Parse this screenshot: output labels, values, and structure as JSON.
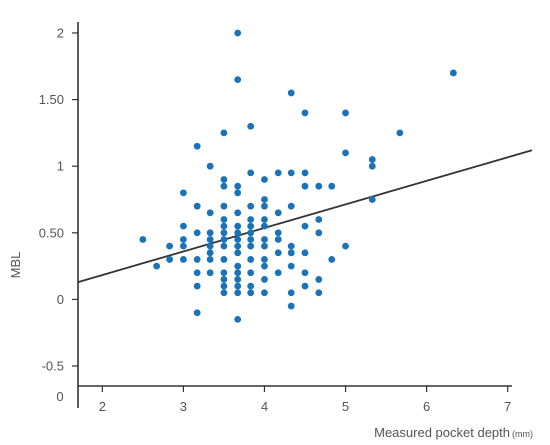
{
  "chart_data": {
    "type": "scatter",
    "xlabel": "Measured pocket depth",
    "xlabel_unit": "(mm)",
    "ylabel": "MBL",
    "xlim": [
      1.7,
      7.3
    ],
    "ylim": [
      -0.65,
      2.15
    ],
    "x_ticks": [
      2,
      3,
      4,
      5,
      6,
      7
    ],
    "x_tick_labels": [
      "2",
      "3",
      "4",
      "5",
      "6",
      "7"
    ],
    "y_ticks": [
      -0.5,
      0,
      0.5,
      1,
      1.5,
      2
    ],
    "y_tick_labels": [
      "-0.5",
      "0",
      "0.50",
      "1",
      "1.50",
      "2"
    ],
    "origin_label": "0",
    "grid": false,
    "colors": {
      "points": "#1a73b8",
      "trend_line": "#333333",
      "axis": "#333333"
    },
    "trend_line": {
      "x": [
        1.7,
        7.3
      ],
      "y": [
        0.13,
        1.12
      ]
    },
    "series": [
      {
        "points": [
          [
            2.5,
            0.45
          ],
          [
            2.67,
            0.25
          ],
          [
            2.83,
            0.3
          ],
          [
            2.83,
            0.4
          ],
          [
            3.0,
            0.8
          ],
          [
            3.0,
            0.55
          ],
          [
            3.0,
            0.45
          ],
          [
            3.0,
            0.4
          ],
          [
            3.0,
            0.3
          ],
          [
            3.17,
            1.15
          ],
          [
            3.17,
            0.7
          ],
          [
            3.17,
            0.5
          ],
          [
            3.17,
            0.3
          ],
          [
            3.17,
            0.2
          ],
          [
            3.17,
            0.1
          ],
          [
            3.17,
            -0.1
          ],
          [
            3.33,
            1.0
          ],
          [
            3.33,
            0.65
          ],
          [
            3.33,
            0.5
          ],
          [
            3.33,
            0.45
          ],
          [
            3.33,
            0.4
          ],
          [
            3.33,
            0.35
          ],
          [
            3.33,
            0.3
          ],
          [
            3.33,
            0.2
          ],
          [
            3.5,
            1.25
          ],
          [
            3.5,
            0.9
          ],
          [
            3.5,
            0.85
          ],
          [
            3.5,
            0.7
          ],
          [
            3.5,
            0.6
          ],
          [
            3.5,
            0.55
          ],
          [
            3.5,
            0.5
          ],
          [
            3.5,
            0.45
          ],
          [
            3.5,
            0.4
          ],
          [
            3.5,
            0.3
          ],
          [
            3.5,
            0.2
          ],
          [
            3.5,
            0.15
          ],
          [
            3.5,
            0.1
          ],
          [
            3.5,
            0.05
          ],
          [
            3.67,
            2.0
          ],
          [
            3.67,
            1.65
          ],
          [
            3.67,
            0.85
          ],
          [
            3.67,
            0.8
          ],
          [
            3.67,
            0.65
          ],
          [
            3.67,
            0.55
          ],
          [
            3.67,
            0.5
          ],
          [
            3.67,
            0.45
          ],
          [
            3.67,
            0.4
          ],
          [
            3.67,
            0.35
          ],
          [
            3.67,
            0.25
          ],
          [
            3.67,
            0.2
          ],
          [
            3.67,
            0.15
          ],
          [
            3.67,
            0.1
          ],
          [
            3.67,
            0.05
          ],
          [
            3.67,
            -0.15
          ],
          [
            3.83,
            1.3
          ],
          [
            3.83,
            0.95
          ],
          [
            3.83,
            0.7
          ],
          [
            3.83,
            0.6
          ],
          [
            3.83,
            0.55
          ],
          [
            3.83,
            0.5
          ],
          [
            3.83,
            0.45
          ],
          [
            3.83,
            0.4
          ],
          [
            3.83,
            0.3
          ],
          [
            3.83,
            0.2
          ],
          [
            3.83,
            0.1
          ],
          [
            3.83,
            0.05
          ],
          [
            4.0,
            0.9
          ],
          [
            4.0,
            0.75
          ],
          [
            4.0,
            0.7
          ],
          [
            4.0,
            0.6
          ],
          [
            4.0,
            0.55
          ],
          [
            4.0,
            0.45
          ],
          [
            4.0,
            0.4
          ],
          [
            4.0,
            0.3
          ],
          [
            4.0,
            0.25
          ],
          [
            4.0,
            0.15
          ],
          [
            4.0,
            0.05
          ],
          [
            4.17,
            0.95
          ],
          [
            4.17,
            0.65
          ],
          [
            4.17,
            0.5
          ],
          [
            4.17,
            0.45
          ],
          [
            4.17,
            0.35
          ],
          [
            4.17,
            0.2
          ],
          [
            4.33,
            1.55
          ],
          [
            4.33,
            0.95
          ],
          [
            4.33,
            0.7
          ],
          [
            4.33,
            0.4
          ],
          [
            4.33,
            0.35
          ],
          [
            4.33,
            0.25
          ],
          [
            4.33,
            0.05
          ],
          [
            4.33,
            -0.05
          ],
          [
            4.5,
            1.4
          ],
          [
            4.5,
            0.95
          ],
          [
            4.5,
            0.85
          ],
          [
            4.5,
            0.55
          ],
          [
            4.5,
            0.35
          ],
          [
            4.5,
            0.2
          ],
          [
            4.5,
            0.1
          ],
          [
            4.67,
            0.85
          ],
          [
            4.67,
            0.6
          ],
          [
            4.67,
            0.5
          ],
          [
            4.67,
            0.15
          ],
          [
            4.67,
            0.05
          ],
          [
            4.83,
            0.85
          ],
          [
            4.83,
            0.3
          ],
          [
            5.0,
            1.4
          ],
          [
            5.0,
            1.1
          ],
          [
            5.0,
            0.4
          ],
          [
            5.33,
            1.05
          ],
          [
            5.33,
            1.0
          ],
          [
            5.33,
            0.75
          ],
          [
            5.67,
            1.25
          ],
          [
            6.33,
            1.7
          ]
        ]
      }
    ]
  }
}
